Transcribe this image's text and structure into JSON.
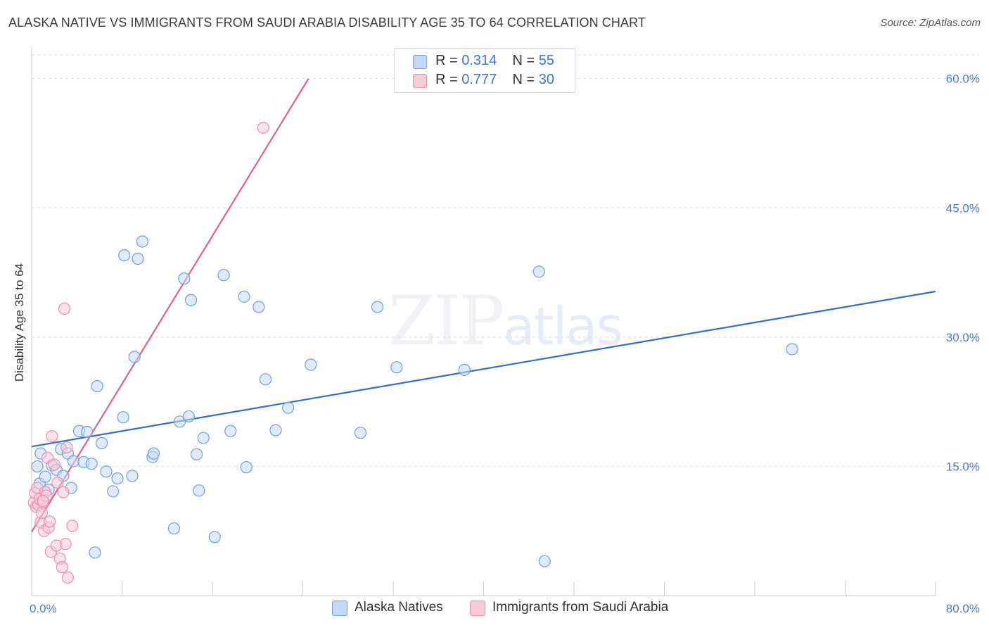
{
  "title": "ALASKA NATIVE VS IMMIGRANTS FROM SAUDI ARABIA DISABILITY AGE 35 TO 64 CORRELATION CHART",
  "source": "Source: ZipAtlas.com",
  "watermark": {
    "zip": "ZIP",
    "atlas": "atlas"
  },
  "legend": {
    "r_label": "R =",
    "n_label": "N =",
    "series": [
      {
        "name": "Alaska Natives",
        "r": "0.314",
        "n": "55"
      },
      {
        "name": "Immigrants from Saudi Arabia",
        "r": "0.777",
        "n": "30"
      }
    ]
  },
  "colors": {
    "blue_fill": "#c4d8f5",
    "blue_stroke": "#6f9fe0",
    "blue_line": "#2f6fd0",
    "pink_fill": "#f8cbd8",
    "pink_stroke": "#ec8fab",
    "pink_line": "#e0608a",
    "grid": "#dddddd",
    "tick": "#4a7fd0"
  },
  "chart_data": {
    "type": "scatter",
    "title": "ALASKA NATIVE VS IMMIGRANTS FROM SAUDI ARABIA DISABILITY AGE 35 TO 64 CORRELATION CHART",
    "xlabel": "",
    "ylabel": "Disability Age 35 to 64",
    "xlim": [
      0,
      80
    ],
    "ylim": [
      0,
      63
    ],
    "x_tick_labels": [
      "0.0%",
      "80.0%"
    ],
    "y_ticks": [
      15,
      30,
      45,
      60
    ],
    "y_tick_labels": [
      "15.0%",
      "30.0%",
      "45.0%",
      "60.0%"
    ],
    "grid": true,
    "series": [
      {
        "name": "Alaska Natives",
        "color": "#6f9fe0",
        "trend": {
          "x": [
            0,
            80
          ],
          "y": [
            17.3,
            35.3
          ]
        },
        "points": [
          [
            0.5,
            15
          ],
          [
            0.7,
            13
          ],
          [
            0.8,
            16.5
          ],
          [
            1.2,
            13.8
          ],
          [
            1.5,
            12.3
          ],
          [
            1.8,
            15.1
          ],
          [
            2.2,
            14.6
          ],
          [
            2.6,
            17
          ],
          [
            2.8,
            13.9
          ],
          [
            3.2,
            16.5
          ],
          [
            3.5,
            12.5
          ],
          [
            3.7,
            15.6
          ],
          [
            4.2,
            19.1
          ],
          [
            4.6,
            15.5
          ],
          [
            4.9,
            19
          ],
          [
            5.3,
            15.3
          ],
          [
            5.6,
            5
          ],
          [
            5.8,
            24.3
          ],
          [
            6.2,
            17.7
          ],
          [
            6.6,
            14.4
          ],
          [
            7.2,
            12.1
          ],
          [
            7.6,
            13.6
          ],
          [
            8.1,
            20.7
          ],
          [
            8.2,
            39.5
          ],
          [
            8.9,
            13.9
          ],
          [
            9.1,
            27.7
          ],
          [
            9.4,
            39.1
          ],
          [
            9.8,
            41.1
          ],
          [
            10.7,
            16.1
          ],
          [
            10.8,
            16.5
          ],
          [
            12.6,
            7.8
          ],
          [
            13.1,
            20.2
          ],
          [
            13.5,
            36.8
          ],
          [
            13.9,
            20.8
          ],
          [
            14.1,
            34.3
          ],
          [
            14.6,
            16.4
          ],
          [
            14.8,
            12.2
          ],
          [
            15.2,
            18.3
          ],
          [
            16.2,
            6.8
          ],
          [
            17.0,
            37.2
          ],
          [
            17.6,
            19.1
          ],
          [
            18.8,
            34.7
          ],
          [
            19.0,
            14.9
          ],
          [
            20.1,
            33.5
          ],
          [
            20.7,
            25.1
          ],
          [
            21.6,
            19.2
          ],
          [
            22.7,
            21.8
          ],
          [
            24.7,
            26.8
          ],
          [
            29.1,
            18.9
          ],
          [
            30.6,
            33.5
          ],
          [
            32.3,
            26.5
          ],
          [
            38.3,
            26.2
          ],
          [
            44.9,
            37.6
          ],
          [
            45.4,
            4
          ],
          [
            67.3,
            28.6
          ]
        ]
      },
      {
        "name": "Immigrants from Saudi Arabia",
        "color": "#ec8fab",
        "trend": {
          "x": [
            0,
            24.5
          ],
          "y": [
            7.4,
            60
          ]
        },
        "points": [
          [
            0.2,
            10.8
          ],
          [
            0.3,
            11.9
          ],
          [
            0.4,
            10.3
          ],
          [
            0.5,
            12.5
          ],
          [
            0.6,
            10.5
          ],
          [
            0.7,
            11.2
          ],
          [
            0.8,
            8.5
          ],
          [
            0.9,
            9.6
          ],
          [
            1.0,
            10.8
          ],
          [
            1.1,
            7.5
          ],
          [
            1.2,
            12
          ],
          [
            1.3,
            11.6
          ],
          [
            1.4,
            16
          ],
          [
            1.5,
            7.9
          ],
          [
            1.6,
            8.6
          ],
          [
            1.7,
            5.1
          ],
          [
            1.8,
            18.5
          ],
          [
            2.0,
            15.2
          ],
          [
            2.2,
            5.8
          ],
          [
            2.3,
            13.1
          ],
          [
            2.5,
            4.3
          ],
          [
            2.7,
            3.3
          ],
          [
            2.8,
            12
          ],
          [
            3.0,
            6
          ],
          [
            3.1,
            17.2
          ],
          [
            3.2,
            2.1
          ],
          [
            3.6,
            8.1
          ],
          [
            2.9,
            33.3
          ],
          [
            20.5,
            54.3
          ],
          [
            1.0,
            11
          ]
        ]
      }
    ]
  }
}
